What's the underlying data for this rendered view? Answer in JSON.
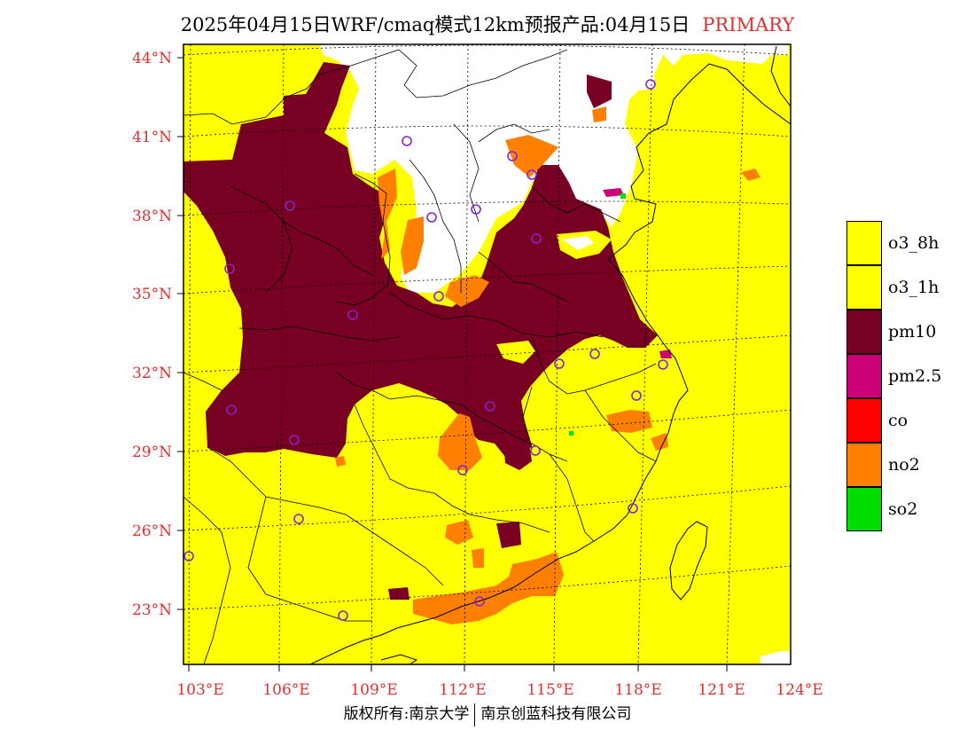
{
  "title": {
    "main": "2025年04月15日WRF/cmaq模式12km预报产品:04月15日",
    "tag": "PRIMARY"
  },
  "axes": {
    "lat_labels": [
      "44°N",
      "41°N",
      "38°N",
      "35°N",
      "32°N",
      "29°N",
      "26°N",
      "23°N"
    ],
    "lon_labels": [
      "103°E",
      "106°E",
      "109°E",
      "112°E",
      "115°E",
      "118°E",
      "121°E",
      "124°E"
    ]
  },
  "legend": {
    "items": [
      {
        "label": "o3_8h",
        "color": "#ffff00"
      },
      {
        "label": "o3_1h",
        "color": "#ffff00"
      },
      {
        "label": "pm10",
        "color": "#780022"
      },
      {
        "label": "pm2.5",
        "color": "#cc0077"
      },
      {
        "label": "co",
        "color": "#ff0000"
      },
      {
        "label": "no2",
        "color": "#ff7f00"
      },
      {
        "label": "so2",
        "color": "#00dd00"
      }
    ]
  },
  "credit": {
    "left": "版权所有:南京大学",
    "right": "南京创蓝科技有限公司"
  },
  "colors": {
    "accent": "#e03030",
    "o3": "#ffff00",
    "pm10": "#780022",
    "pm25": "#cc0077",
    "no2": "#ff7f00",
    "so2": "#00dd00",
    "no_data": "#ffffff",
    "boundary": "#000000",
    "city_marker": "#8822cc"
  }
}
